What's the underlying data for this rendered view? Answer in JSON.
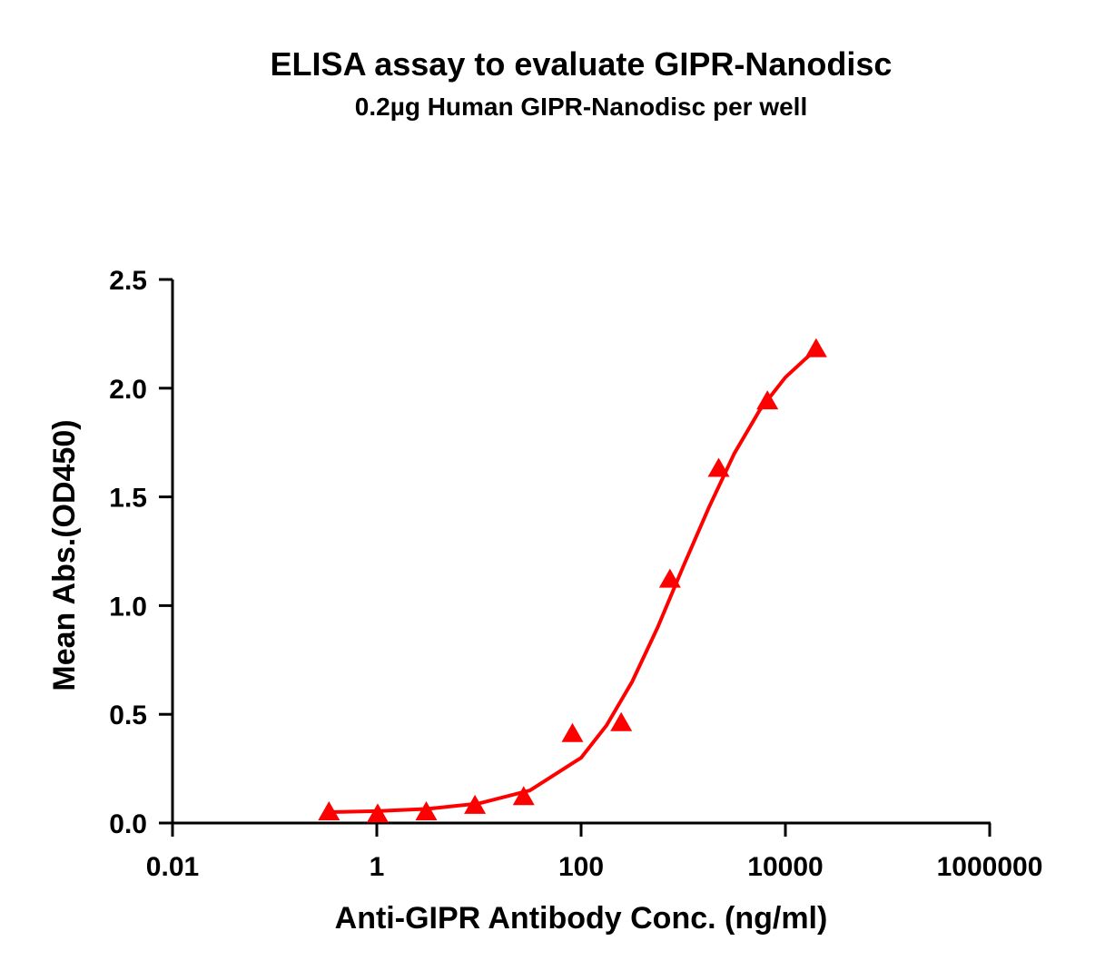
{
  "chart_data": {
    "type": "scatter",
    "title": "ELISA assay to evaluate GIPR-Nanodisc",
    "subtitle": "0.2µg Human GIPR-Nanodisc per well",
    "x_label": "Anti-GIPR Antibody Conc. (ng/ml)",
    "y_label": "Mean Abs.(OD450)",
    "x_scale": "log",
    "xlim": [
      0.01,
      1000000
    ],
    "xticks": [
      0.01,
      1,
      100,
      10000,
      1000000
    ],
    "ylim": [
      0,
      2.5
    ],
    "yticks": [
      {
        "value": 0,
        "label": "0.0"
      },
      0.5,
      {
        "value": 1,
        "label": "1.0"
      },
      1.5,
      {
        "value": 2,
        "label": "2.0"
      },
      2.5
    ],
    "series": [
      {
        "style": "markers",
        "marker": "triangle",
        "color": "#ff0000",
        "x": [
          0.34,
          1.02,
          3.05,
          9.14,
          27.4,
          82.3,
          247,
          741,
          2222,
          6667,
          20000
        ],
        "values": [
          0.05,
          0.04,
          0.05,
          0.08,
          0.12,
          0.41,
          0.46,
          1.12,
          1.63,
          1.94,
          2.18
        ]
      },
      {
        "style": "line",
        "color": "#ff0000",
        "x": [
          0.34,
          1,
          3.16,
          10,
          31.6,
          100,
          178,
          316,
          562,
          1000,
          1778,
          3162,
          5623,
          10000,
          20000
        ],
        "values": [
          0.05,
          0.055,
          0.065,
          0.09,
          0.15,
          0.3,
          0.45,
          0.65,
          0.9,
          1.18,
          1.45,
          1.7,
          1.9,
          2.05,
          2.18
        ]
      }
    ]
  }
}
